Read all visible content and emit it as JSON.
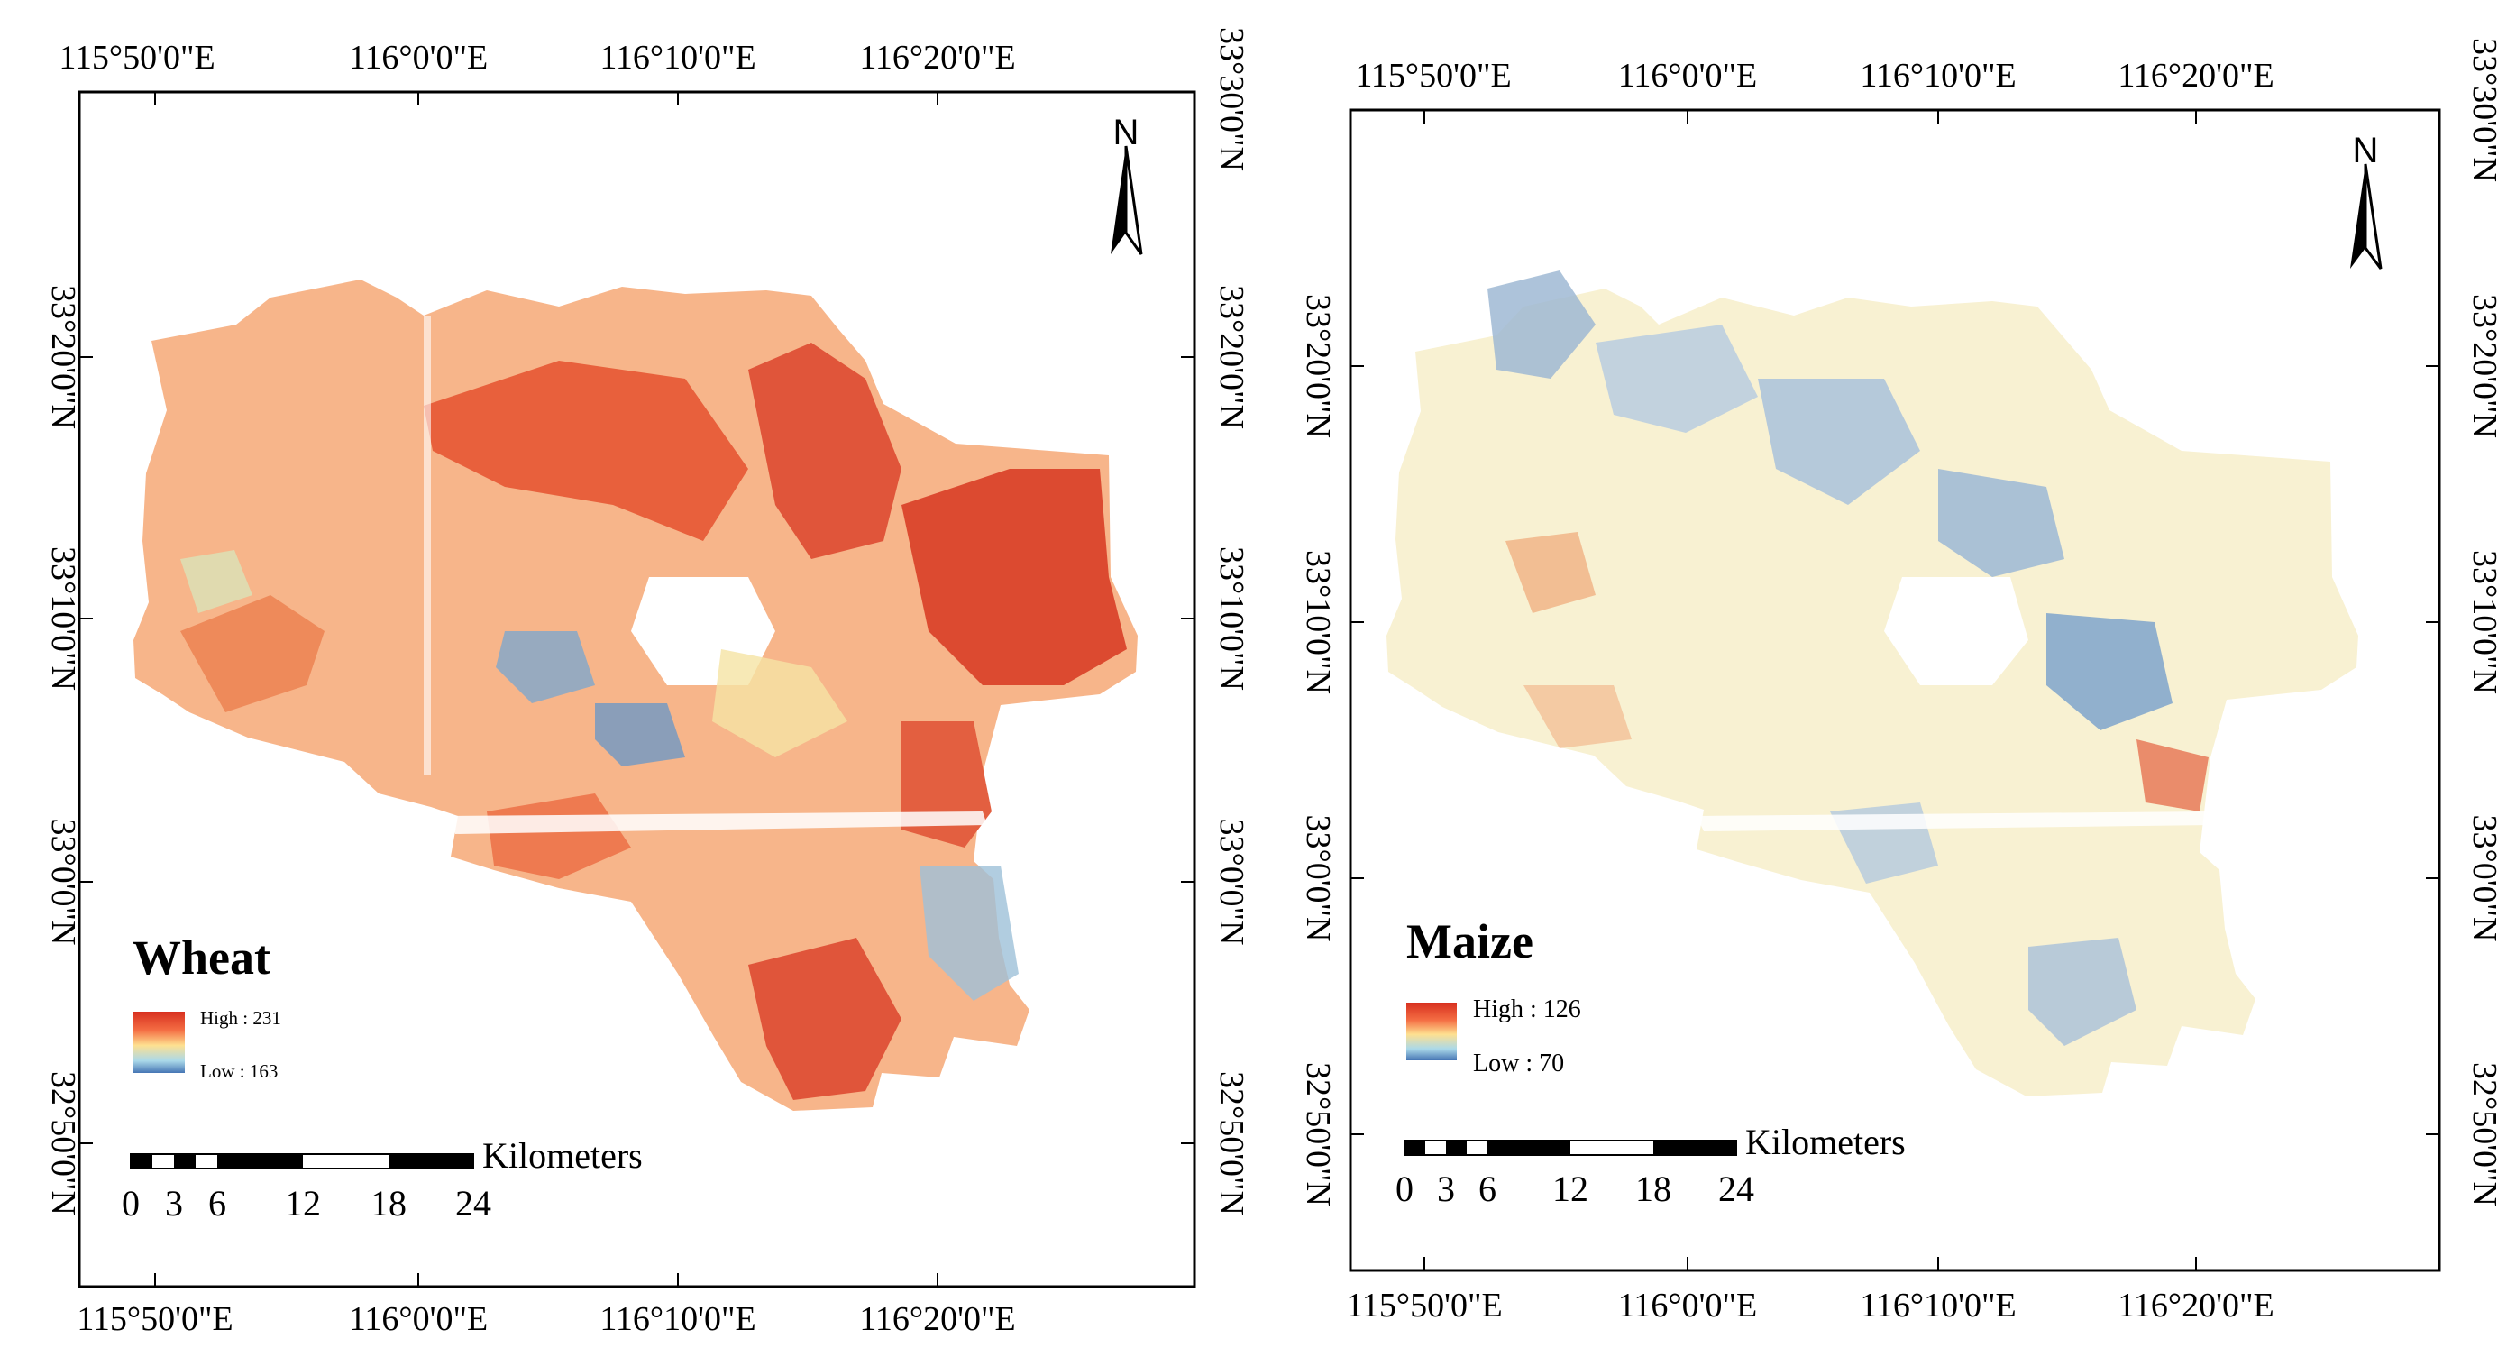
{
  "maps": [
    {
      "crop": "Wheat",
      "legend": {
        "high_label": "High : 231",
        "low_label": "Low : 163"
      },
      "north_label": "N",
      "lon_labels_top": [
        "115°50'0\"E",
        "116°0'0\"E",
        "116°10'0\"E",
        "116°20'0\"E"
      ],
      "lon_labels_bottom": [
        "115°50'0\"E",
        "116°0'0\"E",
        "116°10'0\"E",
        "116°20'0\"E"
      ],
      "lat_labels_left": [
        "33°20'0\"N",
        "33°10'0\"N",
        "33°0'0\"N",
        "32°50'0\"N"
      ],
      "lat_labels_right": [
        "33°30'0\"N",
        "33°20'0\"N",
        "33°10'0\"N",
        "33°0'0\"N",
        "32°50'0\"N"
      ],
      "scale": {
        "unit": "Kilometers",
        "ticks": [
          "0",
          "3",
          "6",
          "12",
          "18",
          "24"
        ]
      },
      "value_range": {
        "high": 231,
        "low": 163
      },
      "dominant_tone": "red-orange"
    },
    {
      "crop": "Maize",
      "legend": {
        "high_label": "High : 126",
        "low_label": "Low : 70"
      },
      "north_label": "N",
      "lon_labels_top": [
        "115°50'0\"E",
        "116°0'0\"E",
        "116°10'0\"E",
        "116°20'0\"E"
      ],
      "lon_labels_bottom": [
        "115°50'0\"E",
        "116°0'0\"E",
        "116°10'0\"E",
        "116°20'0\"E"
      ],
      "lat_labels_left": [
        "33°20'0\"N",
        "33°10'0\"N",
        "33°0'0\"N",
        "32°50'0\"N"
      ],
      "lat_labels_right": [
        "33°30'0\"N",
        "33°20'0\"N",
        "33°10'0\"N",
        "33°0'0\"N",
        "32°50'0\"N"
      ],
      "scale": {
        "unit": "Kilometers",
        "ticks": [
          "0",
          "3",
          "6",
          "12",
          "18",
          "24"
        ]
      },
      "value_range": {
        "high": 126,
        "low": 70
      },
      "dominant_tone": "blue-yellow"
    }
  ],
  "colors": {
    "high": "#d7301f",
    "mid_high": "#f46d43",
    "mid": "#fee090",
    "mid_low": "#abd9e9",
    "low": "#4575b4"
  }
}
